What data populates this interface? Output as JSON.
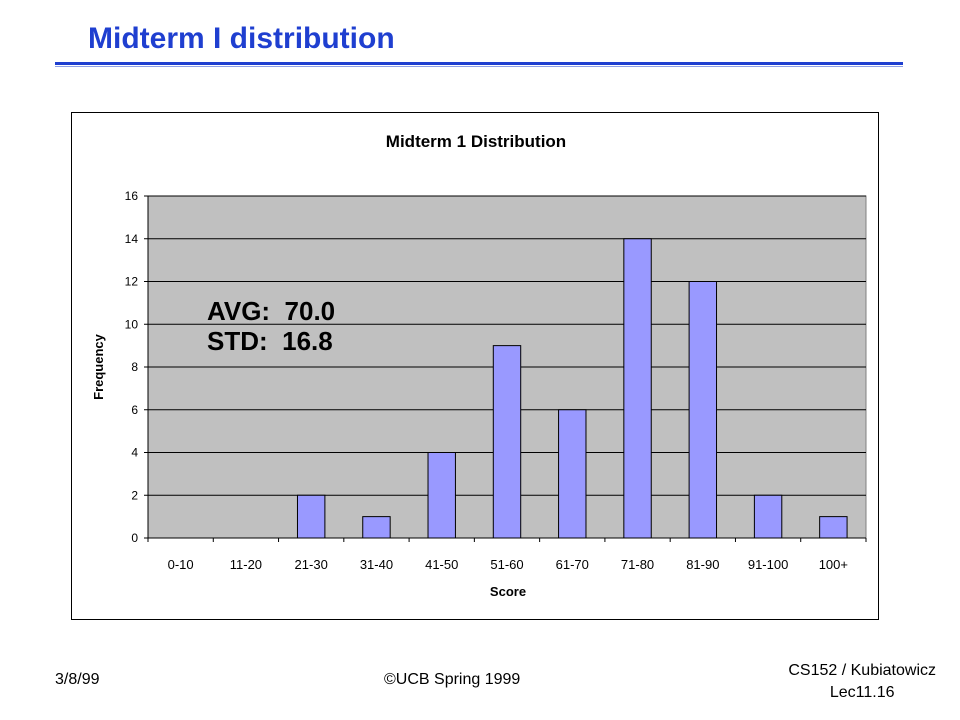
{
  "slide": {
    "title": "Midterm I distribution",
    "footer_date": "3/8/99",
    "footer_copyright": "©UCB Spring 1999",
    "footer_course": "CS152 / Kubiatowicz",
    "footer_lecture": "Lec11.16"
  },
  "colors": {
    "title": "#1f3fd0",
    "bar_fill": "#9999ff",
    "plot_bg": "#c0c0c0"
  },
  "chart_data": {
    "type": "bar",
    "title": "Midterm 1 Distribution",
    "xlabel": "Score",
    "ylabel": "Frequency",
    "categories": [
      "0-10",
      "11-20",
      "21-30",
      "31-40",
      "41-50",
      "51-60",
      "61-70",
      "71-80",
      "81-90",
      "91-100",
      "100+"
    ],
    "values": [
      0,
      0,
      2,
      1,
      4,
      9,
      6,
      14,
      12,
      2,
      1
    ],
    "ylim": [
      0,
      16
    ],
    "yticks": [
      0,
      2,
      4,
      6,
      8,
      10,
      12,
      14,
      16
    ],
    "grid": true,
    "legend": "none",
    "annotations": [
      "AVG:  70.0",
      "STD:  16.8"
    ]
  }
}
